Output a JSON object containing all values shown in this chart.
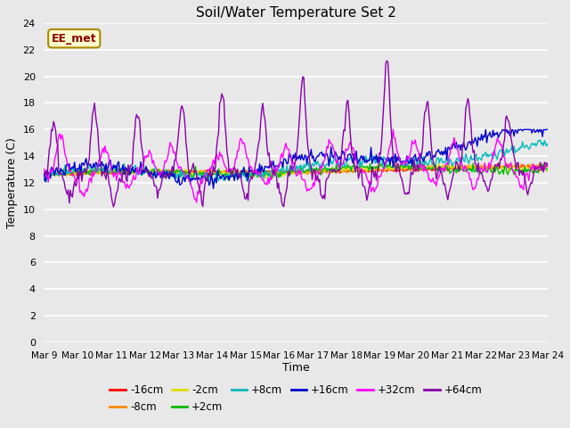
{
  "title": "Soil/Water Temperature Set 2",
  "xlabel": "Time",
  "ylabel": "Temperature (C)",
  "ylim": [
    0,
    24
  ],
  "yticks": [
    0,
    2,
    4,
    6,
    8,
    10,
    12,
    14,
    16,
    18,
    20,
    22,
    24
  ],
  "x_labels": [
    "Mar 9",
    "Mar 10",
    "Mar 11",
    "Mar 12",
    "Mar 13",
    "Mar 14",
    "Mar 15",
    "Mar 16",
    "Mar 17",
    "Mar 18",
    "Mar 19",
    "Mar 20",
    "Mar 21",
    "Mar 22",
    "Mar 23",
    "Mar 24"
  ],
  "annotation_text": "EE_met",
  "annotation_bg": "#ffffcc",
  "annotation_border": "#aa8800",
  "annotation_text_color": "#880000",
  "plot_bg_color": "#e8e8e8",
  "fig_bg_color": "#e8e8e8",
  "series": [
    {
      "label": "-16cm",
      "color": "#ff0000",
      "lw": 1.0
    },
    {
      "label": "-8cm",
      "color": "#ff8800",
      "lw": 1.0
    },
    {
      "label": "-2cm",
      "color": "#dddd00",
      "lw": 1.0
    },
    {
      "label": "+2cm",
      "color": "#00bb00",
      "lw": 1.0
    },
    {
      "label": "+8cm",
      "color": "#00bbbb",
      "lw": 1.0
    },
    {
      "label": "+16cm",
      "color": "#0000cc",
      "lw": 1.0
    },
    {
      "label": "+32cm",
      "color": "#ff00ff",
      "lw": 1.0
    },
    {
      "label": "+64cm",
      "color": "#8800aa",
      "lw": 1.0
    }
  ],
  "figsize": [
    6.4,
    4.8
  ],
  "dpi": 100
}
